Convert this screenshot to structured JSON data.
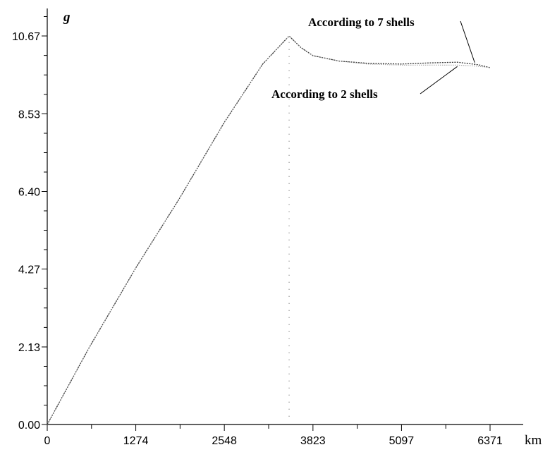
{
  "chart_data": {
    "type": "line",
    "title": "",
    "xlabel": "km",
    "ylabel": "g",
    "xlim": [
      0,
      6371
    ],
    "ylim": [
      0,
      10.67
    ],
    "x_ticks": [
      0,
      1274,
      2548,
      3823,
      5097,
      6371
    ],
    "x_tick_labels": [
      "0",
      "1274",
      "2548",
      "3823",
      "5097",
      "6371"
    ],
    "y_ticks": [
      0,
      2.13,
      4.27,
      6.4,
      8.53,
      10.67
    ],
    "y_tick_labels": [
      "0.00",
      "2.13",
      "4.27",
      "6.40",
      "8.53",
      "10.67"
    ],
    "grid": false,
    "series": [
      {
        "name": "According to 7 shells",
        "x": [
          0,
          600,
          1274,
          1900,
          2548,
          3100,
          3480,
          3650,
          3823,
          4200,
          4600,
          5097,
          5500,
          5900,
          6200,
          6371
        ],
        "y": [
          0,
          2.1,
          4.3,
          6.2,
          8.3,
          9.9,
          10.67,
          10.35,
          10.13,
          9.98,
          9.92,
          9.9,
          9.93,
          9.95,
          9.88,
          9.8
        ]
      },
      {
        "name": "According to 2 shells",
        "x": [
          0,
          600,
          1274,
          1900,
          2548,
          3100,
          3480,
          3650,
          3823,
          4200,
          4600,
          5097,
          5500,
          5900,
          6200,
          6371
        ],
        "y": [
          0,
          2.1,
          4.3,
          6.2,
          8.3,
          9.9,
          10.67,
          10.35,
          10.13,
          9.98,
          9.9,
          9.87,
          9.87,
          9.87,
          9.84,
          9.8
        ]
      }
    ],
    "reference_line": {
      "x": 3480
    },
    "annotations": [
      {
        "text": "According to 7 shells",
        "target_x": 6150,
        "target_y": 9.9
      },
      {
        "text": "According to 2 shells",
        "target_x": 5900,
        "target_y": 9.87
      }
    ]
  }
}
